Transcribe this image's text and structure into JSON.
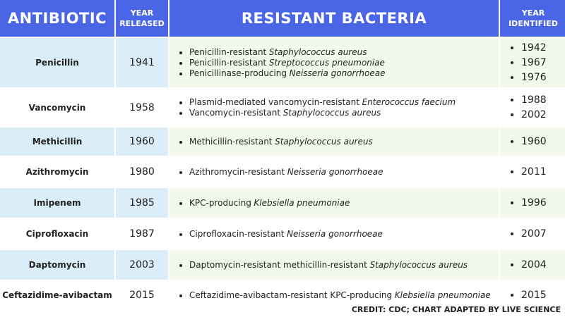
{
  "header": [
    "ANTIBIOTIC",
    "YEAR RELEASED",
    "RESISTANT BACTERIA",
    "YEAR IDENTIFIED"
  ],
  "table": {
    "rows": [
      {
        "antibiotic": "Penicillin",
        "year_released": 1941,
        "bacteria": [
          {
            "prefix": "Penicillin-resistant",
            "species": "Staphylococcus aureus"
          },
          {
            "prefix": "Penicillin-resistant",
            "species": "Streptococcus pneumoniae"
          },
          {
            "prefix": "Penicillinase-producing",
            "species": "Neisseria gonorrhoeae"
          }
        ],
        "years_identified": [
          1942,
          1967,
          1976
        ]
      },
      {
        "antibiotic": "Vancomycin",
        "year_released": 1958,
        "bacteria": [
          {
            "prefix": "Plasmid-mediated vancomycin-resistant",
            "species": "Enterococcus faecium"
          },
          {
            "prefix": "Vancomycin-resistant",
            "species": "Staphylococcus aureus"
          }
        ],
        "years_identified": [
          1988,
          2002
        ]
      },
      {
        "antibiotic": "Methicillin",
        "year_released": 1960,
        "bacteria": [
          {
            "prefix": "Methicillin-resistant",
            "species": "Staphylococcus aureus"
          }
        ],
        "years_identified": [
          1960
        ]
      },
      {
        "antibiotic": "Azithromycin",
        "year_released": 1980,
        "bacteria": [
          {
            "prefix": "Azithromycin-resistant",
            "species": "Neisseria gonorrhoeae"
          }
        ],
        "years_identified": [
          2011
        ]
      },
      {
        "antibiotic": "Imipenem",
        "year_released": 1985,
        "bacteria": [
          {
            "prefix": "KPC-producing",
            "species": "Klebsiella pneumoniae"
          }
        ],
        "years_identified": [
          1996
        ]
      },
      {
        "antibiotic": "Ciprofloxacin",
        "year_released": 1987,
        "bacteria": [
          {
            "prefix": "Ciprofloxacin-resistant",
            "species": "Neisseria gonorrhoeae"
          }
        ],
        "years_identified": [
          2007
        ]
      },
      {
        "antibiotic": "Daptomycin",
        "year_released": 2003,
        "bacteria": [
          {
            "prefix": "Daptomycin-resistant methicillin-resistant",
            "species": "Staphylococcus aureus"
          }
        ],
        "years_identified": [
          2004
        ]
      },
      {
        "antibiotic": "Ceftazidime-avibactam",
        "year_released": 2015,
        "bacteria": [
          {
            "prefix": "Ceftazidime-avibactam-resistant KPC-producing",
            "species": "Klebsiella pneumoniae"
          }
        ],
        "years_identified": [
          2015
        ]
      }
    ]
  },
  "credit": "CREDIT: CDC; CHART ADAPTED BY LIVE SCIENCE"
}
